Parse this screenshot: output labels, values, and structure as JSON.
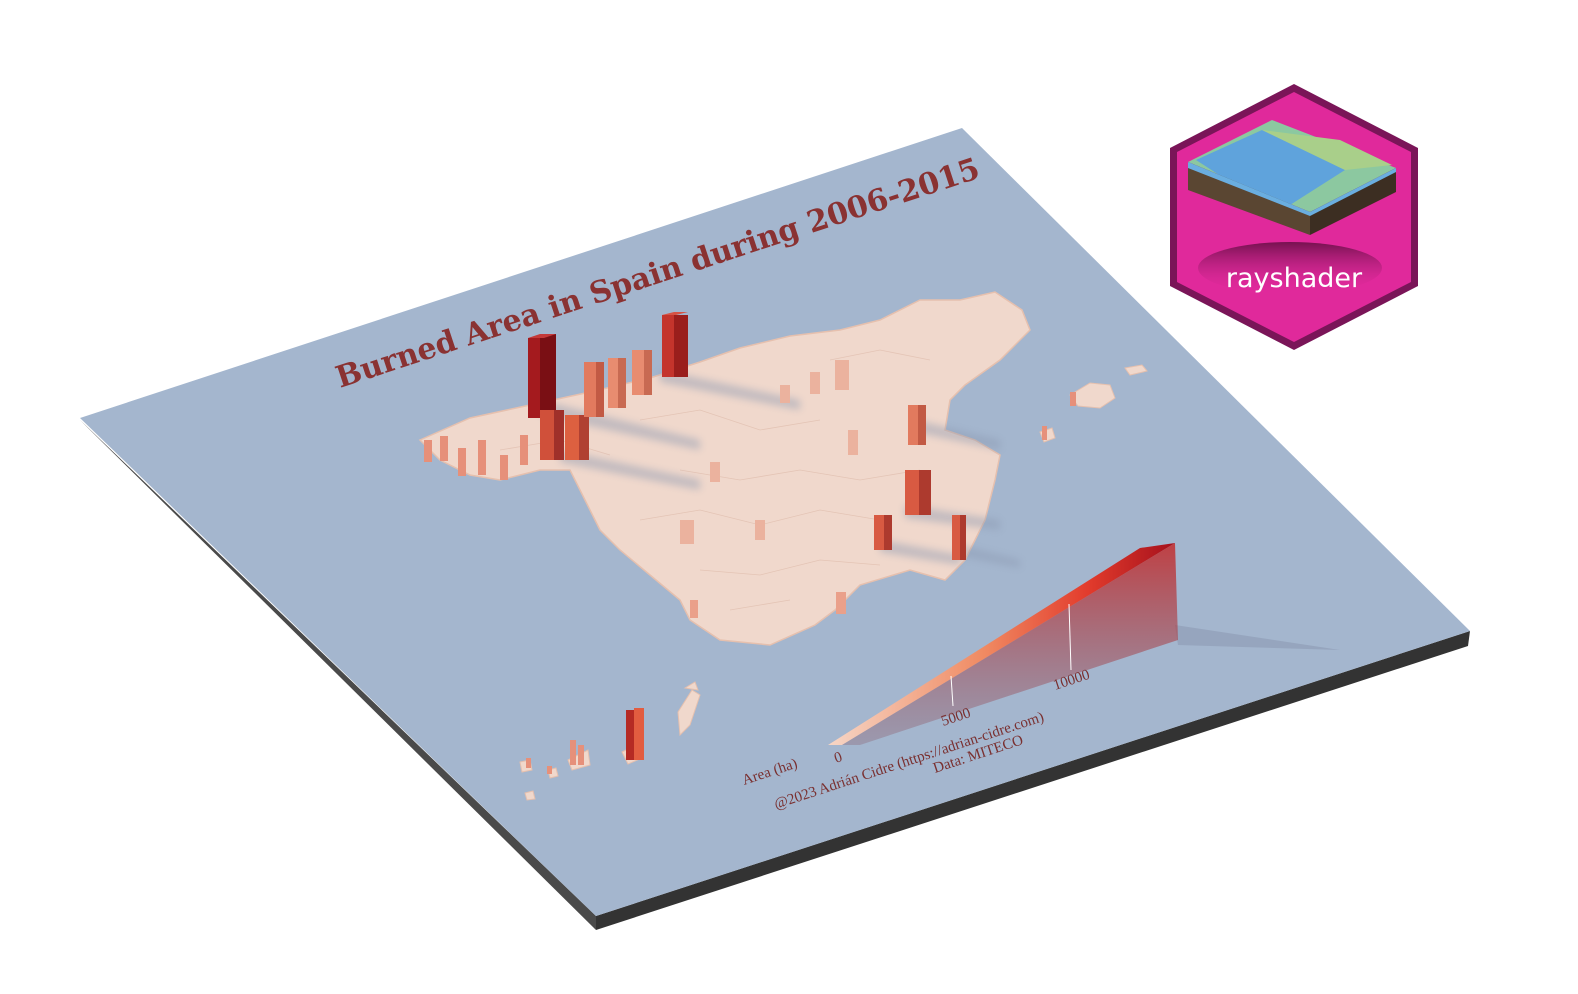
{
  "map": {
    "title": "Burned Area in Spain during 2006-2015",
    "colors": {
      "sea": "#a4b6ce",
      "land": "#f0d8cc",
      "land_edge": "#e6c0ae",
      "bar_low": "#f3c6b3",
      "bar_mid": "#ea5a3a",
      "bar_high": "#8a0f16",
      "board_edge": "#3a3a3a"
    }
  },
  "legend": {
    "label": "Area (ha)",
    "ticks": [
      "0",
      "5000",
      "10000"
    ],
    "scale_values": [
      0,
      5000,
      10000
    ],
    "max_value": 14000
  },
  "credits": {
    "author": "@2023 Adrián Cidre (https://adrian-cidre.com)",
    "source": "Data: MITECO"
  },
  "badge": {
    "label": "rayshader",
    "colors": {
      "hex": "#e0299b",
      "border": "#7a1558"
    }
  }
}
